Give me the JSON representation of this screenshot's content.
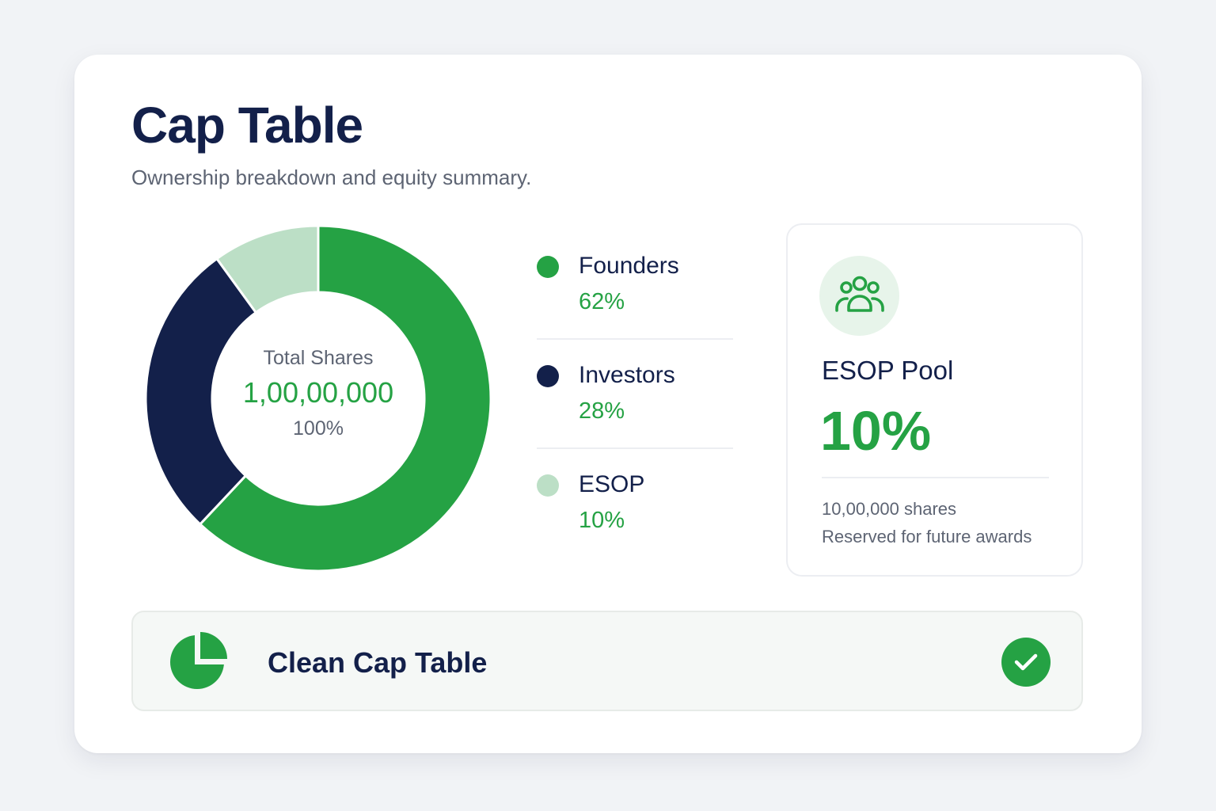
{
  "header": {
    "title": "Cap Table",
    "subtitle": "Ownership breakdown and equity summary."
  },
  "chart_data": {
    "type": "pie",
    "variant": "donut",
    "categories": [
      "Founders",
      "Investors",
      "ESOP"
    ],
    "values": [
      62,
      28,
      10
    ],
    "colors": [
      "#25a244",
      "#13204a",
      "#bcdfc6"
    ],
    "center": {
      "label": "Total Shares",
      "total": "1,00,00,000",
      "percent": "100%"
    }
  },
  "legend": {
    "items": [
      {
        "name": "Founders",
        "value": "62%",
        "color": "#25a244"
      },
      {
        "name": "Investors",
        "value": "28%",
        "color": "#13204a"
      },
      {
        "name": "ESOP",
        "value": "10%",
        "color": "#bcdfc6"
      }
    ]
  },
  "esop": {
    "icon": "users-icon",
    "title": "ESOP Pool",
    "value": "10%",
    "shares": "10,00,000 shares",
    "note": "Reserved for future awards"
  },
  "status": {
    "icon": "pie-chart-icon",
    "label": "Clean Cap Table",
    "check_icon": "check-circle-icon"
  },
  "colors": {
    "accent": "#25a244",
    "navy": "#13204a",
    "muted": "#5d6473",
    "light_green": "#bcdfc6"
  }
}
